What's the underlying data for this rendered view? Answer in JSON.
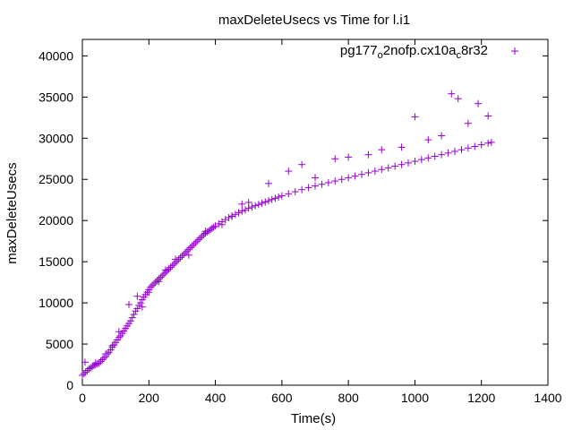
{
  "chart_data": {
    "type": "scatter",
    "title": "maxDeleteUsecs vs Time for l.i1",
    "xlabel": "Time(s)",
    "ylabel": "maxDeleteUsecs",
    "xlim": [
      0,
      1400
    ],
    "ylim": [
      0,
      42000
    ],
    "xticks": [
      0,
      200,
      400,
      600,
      800,
      1000,
      1200,
      1400
    ],
    "yticks": [
      0,
      5000,
      10000,
      15000,
      20000,
      25000,
      30000,
      35000,
      40000
    ],
    "legend_placement": "top-right",
    "marker": "plus",
    "color": "#9400d3",
    "series": [
      {
        "name_parts": [
          "pg177",
          "o",
          "2nofp.cx10a",
          "c",
          "8r32"
        ],
        "points": [
          [
            0,
            1200
          ],
          [
            5,
            1400
          ],
          [
            10,
            1600
          ],
          [
            15,
            1800
          ],
          [
            20,
            2000
          ],
          [
            25,
            2100
          ],
          [
            30,
            2250
          ],
          [
            35,
            2400
          ],
          [
            40,
            2500
          ],
          [
            45,
            2600
          ],
          [
            50,
            2700
          ],
          [
            55,
            2900
          ],
          [
            60,
            3100
          ],
          [
            65,
            3300
          ],
          [
            70,
            3500
          ],
          [
            75,
            3800
          ],
          [
            80,
            4000
          ],
          [
            85,
            4300
          ],
          [
            90,
            4600
          ],
          [
            95,
            4900
          ],
          [
            100,
            5200
          ],
          [
            105,
            5500
          ],
          [
            110,
            5800
          ],
          [
            115,
            6000
          ],
          [
            120,
            6300
          ],
          [
            125,
            6600
          ],
          [
            130,
            6900
          ],
          [
            135,
            7200
          ],
          [
            140,
            7500
          ],
          [
            145,
            7800
          ],
          [
            150,
            8200
          ],
          [
            155,
            8600
          ],
          [
            160,
            9000
          ],
          [
            165,
            9300
          ],
          [
            170,
            9700
          ],
          [
            175,
            10000
          ],
          [
            180,
            10400
          ],
          [
            185,
            10700
          ],
          [
            190,
            11000
          ],
          [
            195,
            11300
          ],
          [
            200,
            11600
          ],
          [
            205,
            11900
          ],
          [
            210,
            12100
          ],
          [
            215,
            12300
          ],
          [
            220,
            12500
          ],
          [
            225,
            12700
          ],
          [
            230,
            12900
          ],
          [
            235,
            13100
          ],
          [
            240,
            13300
          ],
          [
            245,
            13500
          ],
          [
            250,
            13700
          ],
          [
            255,
            13900
          ],
          [
            260,
            14100
          ],
          [
            265,
            14300
          ],
          [
            270,
            14500
          ],
          [
            275,
            14700
          ],
          [
            280,
            14900
          ],
          [
            285,
            15100
          ],
          [
            290,
            15300
          ],
          [
            295,
            15500
          ],
          [
            300,
            15700
          ],
          [
            305,
            15900
          ],
          [
            310,
            16100
          ],
          [
            315,
            16300
          ],
          [
            320,
            16500
          ],
          [
            325,
            16700
          ],
          [
            330,
            16900
          ],
          [
            335,
            17100
          ],
          [
            340,
            17300
          ],
          [
            345,
            17500
          ],
          [
            350,
            17700
          ],
          [
            355,
            17900
          ],
          [
            360,
            18100
          ],
          [
            365,
            18300
          ],
          [
            370,
            18450
          ],
          [
            375,
            18600
          ],
          [
            380,
            18750
          ],
          [
            385,
            18900
          ],
          [
            390,
            19050
          ],
          [
            395,
            19200
          ],
          [
            400,
            19350
          ],
          [
            410,
            19600
          ],
          [
            420,
            19850
          ],
          [
            430,
            20100
          ],
          [
            440,
            20350
          ],
          [
            450,
            20550
          ],
          [
            460,
            20750
          ],
          [
            470,
            20950
          ],
          [
            480,
            21150
          ],
          [
            490,
            21300
          ],
          [
            500,
            21500
          ],
          [
            510,
            21650
          ],
          [
            520,
            21800
          ],
          [
            530,
            21950
          ],
          [
            540,
            22100
          ],
          [
            550,
            22250
          ],
          [
            560,
            22400
          ],
          [
            570,
            22550
          ],
          [
            580,
            22700
          ],
          [
            590,
            22850
          ],
          [
            600,
            23000
          ],
          [
            620,
            23250
          ],
          [
            640,
            23500
          ],
          [
            660,
            23750
          ],
          [
            680,
            24000
          ],
          [
            700,
            24200
          ],
          [
            720,
            24400
          ],
          [
            740,
            24600
          ],
          [
            760,
            24800
          ],
          [
            780,
            25000
          ],
          [
            800,
            25200
          ],
          [
            820,
            25400
          ],
          [
            840,
            25600
          ],
          [
            860,
            25800
          ],
          [
            880,
            26000
          ],
          [
            900,
            26200
          ],
          [
            920,
            26400
          ],
          [
            940,
            26600
          ],
          [
            960,
            26800
          ],
          [
            980,
            27000
          ],
          [
            1000,
            27200
          ],
          [
            1020,
            27400
          ],
          [
            1040,
            27600
          ],
          [
            1060,
            27800
          ],
          [
            1080,
            28000
          ],
          [
            1100,
            28200
          ],
          [
            1120,
            28400
          ],
          [
            1140,
            28600
          ],
          [
            1160,
            28800
          ],
          [
            1180,
            29000
          ],
          [
            1200,
            29200
          ],
          [
            1220,
            29400
          ],
          [
            1230,
            29500
          ],
          [
            8,
            2800
          ],
          [
            40,
            2700
          ],
          [
            70,
            3800
          ],
          [
            90,
            4800
          ],
          [
            110,
            6500
          ],
          [
            140,
            9800
          ],
          [
            165,
            10800
          ],
          [
            180,
            9500
          ],
          [
            200,
            11300
          ],
          [
            230,
            12600
          ],
          [
            250,
            14000
          ],
          [
            280,
            15300
          ],
          [
            320,
            15800
          ],
          [
            370,
            18700
          ],
          [
            420,
            19500
          ],
          [
            450,
            20500
          ],
          [
            480,
            22000
          ],
          [
            500,
            22200
          ],
          [
            560,
            24500
          ],
          [
            620,
            26000
          ],
          [
            660,
            26800
          ],
          [
            700,
            25200
          ],
          [
            760,
            27500
          ],
          [
            800,
            27700
          ],
          [
            860,
            28000
          ],
          [
            900,
            28600
          ],
          [
            960,
            28900
          ],
          [
            1000,
            32600
          ],
          [
            1040,
            29800
          ],
          [
            1080,
            30300
          ],
          [
            1110,
            35400
          ],
          [
            1130,
            34800
          ],
          [
            1160,
            31800
          ],
          [
            1190,
            34200
          ],
          [
            1220,
            32700
          ]
        ]
      }
    ]
  }
}
